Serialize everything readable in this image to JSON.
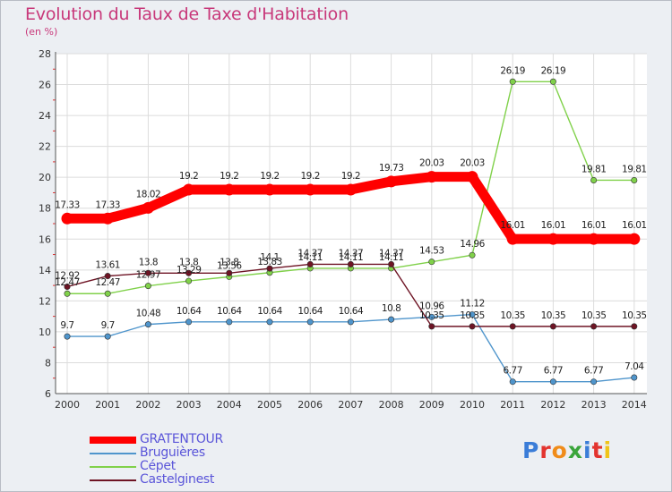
{
  "title": "Evolution du Taux de Taxe d'Habitation",
  "subtitle": "(en %)",
  "logo_letters": [
    {
      "ch": "P",
      "color": "#3b7dd8"
    },
    {
      "ch": "r",
      "color": "#e3342f"
    },
    {
      "ch": "o",
      "color": "#f08c1a"
    },
    {
      "ch": "x",
      "color": "#3aa53a"
    },
    {
      "ch": "i",
      "color": "#3b7dd8"
    },
    {
      "ch": "t",
      "color": "#e3342f"
    },
    {
      "ch": "i",
      "color": "#f0c419"
    }
  ],
  "chart_data": {
    "type": "line",
    "title": "Evolution du Taux de Taxe d'Habitation",
    "subtitle": "(en %)",
    "x": [
      2000,
      2001,
      2002,
      2003,
      2004,
      2005,
      2006,
      2007,
      2008,
      2009,
      2010,
      2011,
      2012,
      2013,
      2014
    ],
    "ylim": [
      6,
      28
    ],
    "yticks": [
      6,
      8,
      10,
      12,
      14,
      16,
      18,
      20,
      22,
      24,
      26,
      28
    ],
    "grid": true,
    "legend_position": "bottom-left",
    "series": [
      {
        "name": "GRATENTOUR",
        "color": "#ff0000",
        "emphasis": true,
        "values": [
          17.33,
          17.33,
          18.02,
          19.2,
          19.2,
          19.2,
          19.2,
          19.2,
          19.73,
          20.03,
          20.03,
          16.01,
          16.01,
          16.01,
          16.01
        ],
        "labels": [
          "17.33",
          "17.33",
          "18.02",
          "19.2",
          "19.2",
          "19.2",
          "19.2",
          "19.2",
          "19.73",
          "20.03",
          "20.03",
          "16.01",
          "16.01",
          "16.01",
          "16.01"
        ]
      },
      {
        "name": "Bruguières",
        "color": "#4f95cc",
        "emphasis": false,
        "values": [
          9.7,
          9.7,
          10.48,
          10.64,
          10.64,
          10.64,
          10.64,
          10.64,
          10.8,
          10.96,
          11.12,
          6.77,
          6.77,
          6.77,
          7.04
        ],
        "labels": [
          "9.7",
          "9.7",
          "10.48",
          "10.64",
          "10.64",
          "10.64",
          "10.64",
          "10.64",
          "10.8",
          "10.96",
          "11.12",
          "6.77",
          "6.77",
          "6.77",
          "7.04"
        ]
      },
      {
        "name": "Cépet",
        "color": "#80d14a",
        "emphasis": false,
        "values": [
          12.47,
          12.47,
          12.97,
          13.29,
          13.56,
          13.83,
          14.11,
          14.11,
          14.11,
          14.53,
          14.96,
          26.19,
          26.19,
          19.81,
          19.81
        ],
        "labels": [
          "12.47",
          "12.47",
          "12.97",
          "13.29",
          "13.56",
          "13.83",
          "14.11",
          "14.11",
          "14.11",
          "14.53",
          "14.96",
          "26.19",
          "26.19",
          "19.81",
          "19.81"
        ]
      },
      {
        "name": "Castelginest",
        "color": "#6e1424",
        "emphasis": false,
        "values": [
          12.92,
          13.61,
          13.8,
          13.8,
          13.8,
          14.1,
          14.37,
          14.37,
          14.37,
          10.35,
          10.35,
          10.35,
          10.35,
          10.35,
          10.35
        ],
        "labels": [
          "12.92",
          "13.61",
          "13.8",
          "13.8",
          "13.8",
          "14.1",
          "14.37",
          "14.37",
          "14.37",
          "10.35",
          "10.35",
          "10.35",
          "10.35",
          "10.35",
          "10.35"
        ]
      }
    ]
  }
}
